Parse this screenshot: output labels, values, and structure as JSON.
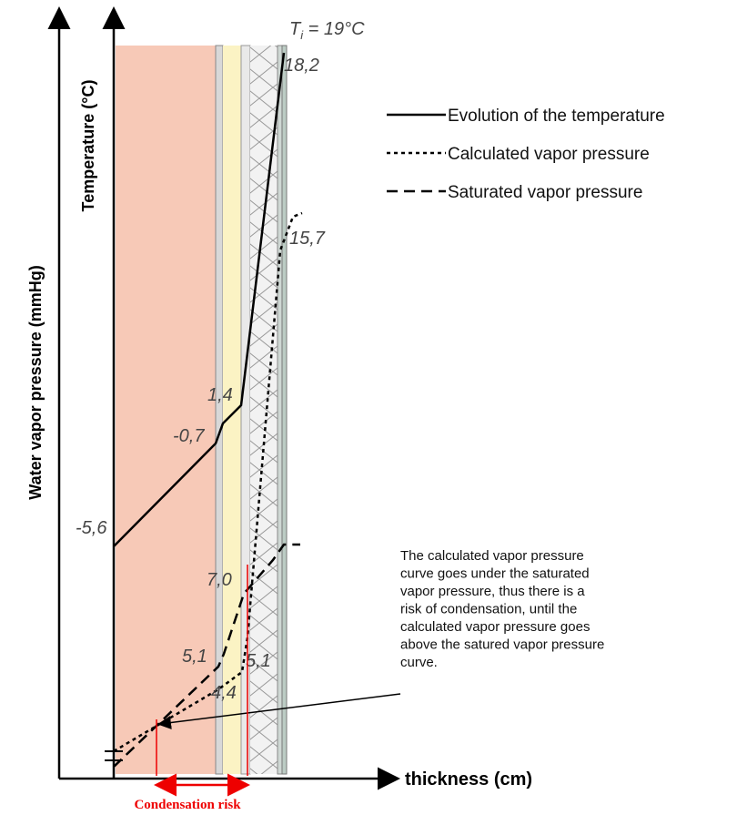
{
  "axes": {
    "vapor_pressure": "Water vapor pressure (mmHg)",
    "temperature": "Temperature (°C)",
    "thickness": "thickness (cm)"
  },
  "interior": {
    "symbol": "T",
    "subscript": "i",
    "value": " = 19°C"
  },
  "legend": [
    "Evolution of the temperature",
    "Calculated vapor pressure",
    "Saturated vapor pressure"
  ],
  "point_labels": [
    "18,2",
    "15,7",
    "1,4",
    "-0,7",
    "-5,6",
    "7,0",
    "5,1",
    "5,1",
    "4,4"
  ],
  "annotation": {
    "lines": [
      "The calculated vapor pressure",
      "curve goes under the saturated",
      "vapor pressure, thus there is a",
      "risk of condensation, until the",
      "calculated vapor pressure goes",
      "above the satured vapor pressure",
      "curve."
    ]
  },
  "condensation_label": "Condensation risk"
}
